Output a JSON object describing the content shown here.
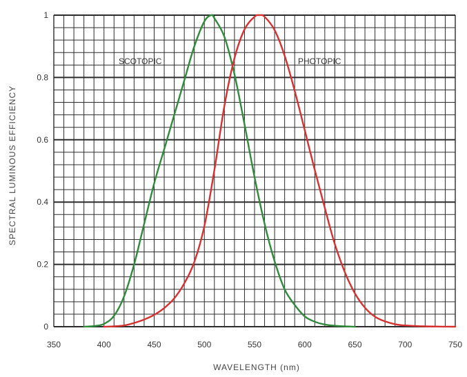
{
  "chart_data": {
    "type": "line",
    "title": "",
    "xlabel": "WAVELENGTH (nm)",
    "ylabel": "SPECTRAL LUMINOUS EFFICIENCY",
    "xlim": [
      350,
      750
    ],
    "ylim": [
      0,
      1
    ],
    "xticks": [
      "350",
      "400",
      "450",
      "500",
      "550",
      "600",
      "650",
      "700",
      "750"
    ],
    "yticks": [
      "0",
      "0.2",
      "0.4",
      "0.6",
      "0.8",
      "1"
    ],
    "grid": true,
    "series": [
      {
        "name": "SCOTOPIC",
        "color": "#2f8a3a",
        "x": [
          380,
          390,
          400,
          410,
          420,
          430,
          440,
          450,
          460,
          470,
          480,
          490,
          500,
          507,
          510,
          520,
          530,
          540,
          550,
          560,
          570,
          580,
          590,
          600,
          610,
          620,
          630,
          640,
          650
        ],
        "y": [
          0.0,
          0.002,
          0.009,
          0.035,
          0.097,
          0.2,
          0.33,
          0.46,
          0.57,
          0.68,
          0.79,
          0.9,
          0.98,
          1.0,
          0.99,
          0.93,
          0.81,
          0.65,
          0.48,
          0.33,
          0.21,
          0.12,
          0.07,
          0.033,
          0.016,
          0.007,
          0.003,
          0.001,
          0.0
        ]
      },
      {
        "name": "PHOTOPIC",
        "color": "#d63030",
        "x": [
          400,
          410,
          420,
          430,
          440,
          450,
          460,
          470,
          480,
          490,
          500,
          510,
          520,
          530,
          540,
          550,
          555,
          560,
          570,
          580,
          590,
          600,
          610,
          620,
          630,
          640,
          650,
          660,
          670,
          680,
          690,
          700,
          720,
          750
        ],
        "y": [
          0.0,
          0.001,
          0.004,
          0.012,
          0.023,
          0.038,
          0.06,
          0.091,
          0.139,
          0.208,
          0.323,
          0.503,
          0.71,
          0.862,
          0.954,
          0.995,
          1.0,
          0.995,
          0.952,
          0.87,
          0.757,
          0.631,
          0.503,
          0.381,
          0.265,
          0.175,
          0.107,
          0.061,
          0.032,
          0.017,
          0.008,
          0.004,
          0.001,
          0.0
        ]
      }
    ]
  }
}
